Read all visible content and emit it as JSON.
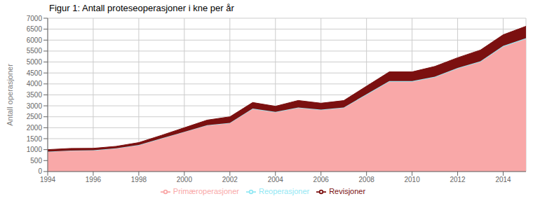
{
  "chart_data": {
    "type": "area",
    "title": "Figur 1: Antall proteseoperasjoner i kne per år",
    "ylabel": "Antall operasjoner",
    "x": [
      1994,
      1995,
      1996,
      1997,
      1998,
      1999,
      2000,
      2001,
      2002,
      2003,
      2004,
      2005,
      2006,
      2007,
      2008,
      2009,
      2010,
      2011,
      2012,
      2013,
      2014,
      2015
    ],
    "series": [
      {
        "name": "Primæroperasjoner",
        "color": "#f9a8a8",
        "values": [
          900,
          950,
          960,
          1050,
          1200,
          1500,
          1800,
          2100,
          2200,
          2850,
          2700,
          2900,
          2800,
          2900,
          3500,
          4100,
          4100,
          4300,
          4700,
          5000,
          5700,
          6050
        ]
      },
      {
        "name": "Reoperasjoner",
        "color": "#92e8f4",
        "values": [
          10,
          10,
          10,
          10,
          12,
          15,
          15,
          18,
          20,
          22,
          25,
          25,
          25,
          25,
          28,
          30,
          30,
          30,
          32,
          32,
          35,
          38
        ]
      },
      {
        "name": "Revisjoner",
        "color": "#7b1010",
        "values": [
          90,
          95,
          90,
          90,
          110,
          140,
          185,
          230,
          280,
          280,
          255,
          320,
          295,
          315,
          370,
          420,
          420,
          470,
          465,
          515,
          510,
          545
        ]
      }
    ],
    "stacked": true,
    "xlim": [
      1994,
      2015
    ],
    "xticks": [
      1994,
      1996,
      1998,
      2000,
      2002,
      2004,
      2006,
      2008,
      2010,
      2012,
      2014
    ],
    "ylim": [
      0,
      7000
    ],
    "yticks": [
      0,
      500,
      1000,
      1500,
      2000,
      2500,
      3000,
      3500,
      4000,
      4500,
      5000,
      5500,
      6000,
      6500,
      7000
    ],
    "grid": true,
    "legend": "bottom"
  }
}
